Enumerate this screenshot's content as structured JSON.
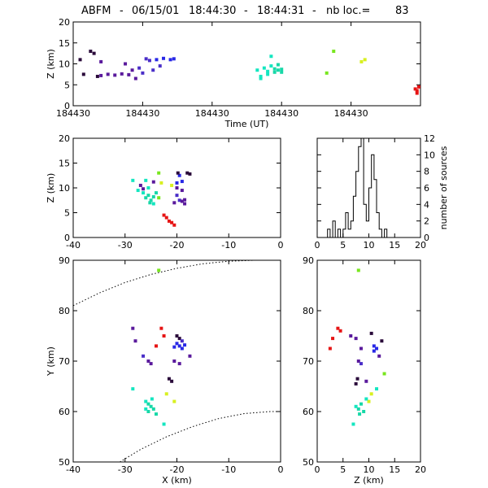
{
  "title": {
    "station": "ABFM",
    "separator": "-",
    "date": "06/15/01",
    "time_start": "18:44:30",
    "time_end": "18:44:31",
    "count_label": "nb loc.=",
    "count": "83"
  },
  "colors": {
    "black_purple": "#2a0a3a",
    "purple": "#5a1a9c",
    "violet": "#4a2ec8",
    "blue": "#2828e6",
    "cyan": "#14e6c0",
    "cyan2": "#18d8a8",
    "lime": "#78e61e",
    "yellow": "#d8f020",
    "red": "#e61414"
  },
  "chart_data": [
    {
      "type": "scatter",
      "panel": "time-height",
      "xlabel": "Time (UT)",
      "ylabel": "Z (km)",
      "ylim": [
        0,
        20
      ],
      "xlim": [
        0,
        1
      ],
      "yticks": [
        0,
        5,
        10,
        15,
        20
      ],
      "xtick_positions": [
        0,
        0.2,
        0.4,
        0.6,
        0.8
      ],
      "xtick_labels": [
        "184430",
        "184430",
        "184430",
        "184430",
        "184430"
      ],
      "points": [
        {
          "x": 0.02,
          "y": 11.0,
          "c": "black_purple"
        },
        {
          "x": 0.03,
          "y": 7.5,
          "c": "black_purple"
        },
        {
          "x": 0.05,
          "y": 13.0,
          "c": "black_purple"
        },
        {
          "x": 0.06,
          "y": 12.5,
          "c": "black_purple"
        },
        {
          "x": 0.07,
          "y": 7.0,
          "c": "black_purple"
        },
        {
          "x": 0.08,
          "y": 10.5,
          "c": "purple"
        },
        {
          "x": 0.08,
          "y": 7.2,
          "c": "purple"
        },
        {
          "x": 0.1,
          "y": 7.5,
          "c": "purple"
        },
        {
          "x": 0.12,
          "y": 7.3,
          "c": "purple"
        },
        {
          "x": 0.14,
          "y": 7.6,
          "c": "purple"
        },
        {
          "x": 0.15,
          "y": 10.0,
          "c": "purple"
        },
        {
          "x": 0.16,
          "y": 7.4,
          "c": "purple"
        },
        {
          "x": 0.17,
          "y": 8.5,
          "c": "purple"
        },
        {
          "x": 0.18,
          "y": 6.5,
          "c": "purple"
        },
        {
          "x": 0.19,
          "y": 9.0,
          "c": "violet"
        },
        {
          "x": 0.2,
          "y": 7.8,
          "c": "violet"
        },
        {
          "x": 0.21,
          "y": 11.2,
          "c": "violet"
        },
        {
          "x": 0.22,
          "y": 10.8,
          "c": "violet"
        },
        {
          "x": 0.24,
          "y": 11.0,
          "c": "blue"
        },
        {
          "x": 0.26,
          "y": 11.3,
          "c": "blue"
        },
        {
          "x": 0.28,
          "y": 11.0,
          "c": "blue"
        },
        {
          "x": 0.29,
          "y": 11.2,
          "c": "blue"
        },
        {
          "x": 0.23,
          "y": 8.5,
          "c": "violet"
        },
        {
          "x": 0.25,
          "y": 9.5,
          "c": "violet"
        },
        {
          "x": 0.53,
          "y": 8.5,
          "c": "cyan"
        },
        {
          "x": 0.54,
          "y": 7.0,
          "c": "cyan"
        },
        {
          "x": 0.55,
          "y": 9.0,
          "c": "cyan"
        },
        {
          "x": 0.56,
          "y": 7.5,
          "c": "cyan"
        },
        {
          "x": 0.56,
          "y": 8.2,
          "c": "cyan"
        },
        {
          "x": 0.57,
          "y": 11.8,
          "c": "cyan"
        },
        {
          "x": 0.57,
          "y": 9.5,
          "c": "cyan"
        },
        {
          "x": 0.58,
          "y": 8.8,
          "c": "cyan2"
        },
        {
          "x": 0.58,
          "y": 8.0,
          "c": "cyan2"
        },
        {
          "x": 0.59,
          "y": 9.8,
          "c": "cyan2"
        },
        {
          "x": 0.59,
          "y": 8.5,
          "c": "cyan2"
        },
        {
          "x": 0.6,
          "y": 8.7,
          "c": "cyan2"
        },
        {
          "x": 0.6,
          "y": 8.0,
          "c": "cyan2"
        },
        {
          "x": 0.54,
          "y": 6.5,
          "c": "cyan"
        },
        {
          "x": 0.73,
          "y": 7.8,
          "c": "lime"
        },
        {
          "x": 0.75,
          "y": 13.0,
          "c": "lime"
        },
        {
          "x": 0.83,
          "y": 10.5,
          "c": "yellow"
        },
        {
          "x": 0.84,
          "y": 11.0,
          "c": "yellow"
        },
        {
          "x": 0.995,
          "y": 4.5,
          "c": "red"
        },
        {
          "x": 0.99,
          "y": 3.0,
          "c": "red"
        },
        {
          "x": 0.985,
          "y": 4.0,
          "c": "red"
        },
        {
          "x": 0.99,
          "y": 3.6,
          "c": "red"
        }
      ]
    },
    {
      "type": "scatter",
      "panel": "x-z",
      "xlabel": "",
      "ylabel": "Z (km)",
      "xlim": [
        -40,
        0
      ],
      "ylim": [
        0,
        20
      ],
      "xticks": [
        -40,
        -30,
        -20,
        -10,
        0
      ],
      "yticks": [
        0,
        5,
        10,
        15,
        20
      ],
      "points": [
        {
          "x": -28.5,
          "y": 11.5,
          "c": "cyan"
        },
        {
          "x": -27.5,
          "y": 9.5,
          "c": "cyan"
        },
        {
          "x": -26.5,
          "y": 9.0,
          "c": "cyan"
        },
        {
          "x": -26,
          "y": 8.0,
          "c": "cyan2"
        },
        {
          "x": -25.5,
          "y": 8.5,
          "c": "cyan2"
        },
        {
          "x": -25,
          "y": 7.5,
          "c": "cyan2"
        },
        {
          "x": -24.5,
          "y": 8.2,
          "c": "cyan2"
        },
        {
          "x": -24,
          "y": 9.0,
          "c": "cyan2"
        },
        {
          "x": -25.5,
          "y": 10.0,
          "c": "cyan"
        },
        {
          "x": -26,
          "y": 11.5,
          "c": "cyan"
        },
        {
          "x": -24.5,
          "y": 6.8,
          "c": "cyan"
        },
        {
          "x": -25.2,
          "y": 7.0,
          "c": "cyan2"
        },
        {
          "x": -27,
          "y": 10.5,
          "c": "purple"
        },
        {
          "x": -26.5,
          "y": 9.8,
          "c": "purple"
        },
        {
          "x": -24.5,
          "y": 11.2,
          "c": "purple"
        },
        {
          "x": -23,
          "y": 11.0,
          "c": "yellow"
        },
        {
          "x": -21,
          "y": 10.5,
          "c": "yellow"
        },
        {
          "x": -23.5,
          "y": 13.0,
          "c": "lime"
        },
        {
          "x": -23.5,
          "y": 8.0,
          "c": "lime"
        },
        {
          "x": -20,
          "y": 11.0,
          "c": "blue"
        },
        {
          "x": -19.5,
          "y": 12.5,
          "c": "blue"
        },
        {
          "x": -19,
          "y": 11.3,
          "c": "blue"
        },
        {
          "x": -19.8,
          "y": 13.0,
          "c": "black_purple"
        },
        {
          "x": -18,
          "y": 13.0,
          "c": "black_purple"
        },
        {
          "x": -17.5,
          "y": 12.8,
          "c": "black_purple"
        },
        {
          "x": -20,
          "y": 8.5,
          "c": "violet"
        },
        {
          "x": -19.5,
          "y": 7.5,
          "c": "violet"
        },
        {
          "x": -20.5,
          "y": 7.0,
          "c": "purple"
        },
        {
          "x": -19,
          "y": 7.3,
          "c": "purple"
        },
        {
          "x": -18.5,
          "y": 7.6,
          "c": "purple"
        },
        {
          "x": -20,
          "y": 10.0,
          "c": "purple"
        },
        {
          "x": -19,
          "y": 9.5,
          "c": "purple"
        },
        {
          "x": -18.5,
          "y": 6.8,
          "c": "purple"
        },
        {
          "x": -22.5,
          "y": 4.5,
          "c": "red"
        },
        {
          "x": -22,
          "y": 4.0,
          "c": "red"
        },
        {
          "x": -21.5,
          "y": 3.3,
          "c": "red"
        },
        {
          "x": -21,
          "y": 3.0,
          "c": "red"
        },
        {
          "x": -20.5,
          "y": 2.5,
          "c": "red"
        }
      ]
    },
    {
      "type": "bar",
      "panel": "histogram",
      "xlabel": "",
      "ylabel": "number of sources",
      "xlim": [
        0,
        20
      ],
      "ylim": [
        0,
        12
      ],
      "xticks": [
        0,
        5,
        10,
        15,
        20
      ],
      "yticks": [
        0,
        2,
        4,
        6,
        8,
        10,
        12
      ],
      "bin_width": 0.5,
      "bin_starts": [
        1.0,
        1.5,
        2.0,
        2.5,
        3.0,
        3.5,
        4.0,
        4.5,
        5.0,
        5.5,
        6.0,
        6.5,
        7.0,
        7.5,
        8.0,
        8.5,
        9.0,
        9.5,
        10.0,
        10.5,
        11.0,
        11.5,
        12.0,
        12.5,
        13.0,
        13.5
      ],
      "values": [
        0,
        0,
        1,
        0,
        2,
        0,
        1,
        0,
        1,
        3,
        1,
        2,
        5,
        8,
        11,
        12,
        4,
        2,
        6,
        10,
        7,
        3,
        1,
        0,
        1,
        0
      ]
    },
    {
      "type": "scatter",
      "panel": "x-y",
      "xlabel": "X (km)",
      "ylabel": "Y (km)",
      "xlim": [
        -40,
        0
      ],
      "ylim": [
        50,
        90
      ],
      "xticks": [
        -40,
        -30,
        -20,
        -10,
        0
      ],
      "yticks": [
        50,
        60,
        70,
        80,
        90
      ],
      "points": [
        {
          "x": -23.5,
          "y": 88,
          "c": "lime"
        },
        {
          "x": -28.5,
          "y": 76.5,
          "c": "purple"
        },
        {
          "x": -28,
          "y": 74,
          "c": "purple"
        },
        {
          "x": -26.5,
          "y": 71,
          "c": "violet"
        },
        {
          "x": -25.5,
          "y": 70,
          "c": "purple"
        },
        {
          "x": -25,
          "y": 69.5,
          "c": "purple"
        },
        {
          "x": -23,
          "y": 76.5,
          "c": "red"
        },
        {
          "x": -22.5,
          "y": 75,
          "c": "red"
        },
        {
          "x": -24,
          "y": 73,
          "c": "red"
        },
        {
          "x": -20,
          "y": 75,
          "c": "black_purple"
        },
        {
          "x": -19.5,
          "y": 74.5,
          "c": "black_purple"
        },
        {
          "x": -19,
          "y": 74,
          "c": "violet"
        },
        {
          "x": -20,
          "y": 73.5,
          "c": "blue"
        },
        {
          "x": -19.5,
          "y": 73,
          "c": "blue"
        },
        {
          "x": -19,
          "y": 72.5,
          "c": "blue"
        },
        {
          "x": -20.5,
          "y": 72.8,
          "c": "blue"
        },
        {
          "x": -18.5,
          "y": 73.2,
          "c": "blue"
        },
        {
          "x": -17.5,
          "y": 71,
          "c": "purple"
        },
        {
          "x": -20.5,
          "y": 70,
          "c": "purple"
        },
        {
          "x": -19.5,
          "y": 69.5,
          "c": "purple"
        },
        {
          "x": -21,
          "y": 66,
          "c": "black_purple"
        },
        {
          "x": -21.5,
          "y": 66.5,
          "c": "black_purple"
        },
        {
          "x": -22,
          "y": 63.5,
          "c": "yellow"
        },
        {
          "x": -20.5,
          "y": 62,
          "c": "yellow"
        },
        {
          "x": -28.5,
          "y": 64.5,
          "c": "cyan"
        },
        {
          "x": -26,
          "y": 62,
          "c": "cyan"
        },
        {
          "x": -25.5,
          "y": 61.5,
          "c": "cyan2"
        },
        {
          "x": -25,
          "y": 61,
          "c": "cyan2"
        },
        {
          "x": -24.5,
          "y": 60.5,
          "c": "cyan2"
        },
        {
          "x": -25.5,
          "y": 60,
          "c": "cyan2"
        },
        {
          "x": -24,
          "y": 59.5,
          "c": "cyan2"
        },
        {
          "x": -26,
          "y": 60.5,
          "c": "cyan"
        },
        {
          "x": -24.8,
          "y": 62.5,
          "c": "cyan"
        },
        {
          "x": -22.5,
          "y": 57.5,
          "c": "cyan"
        }
      ],
      "curves": [
        {
          "name": "range-arc-outer",
          "points": [
            [
              -40,
              81
            ],
            [
              -35,
              83.5
            ],
            [
              -30,
              85.6
            ],
            [
              -25,
              87.2
            ],
            [
              -20,
              88.4
            ],
            [
              -15,
              89.3
            ],
            [
              -10,
              89.8
            ],
            [
              -5,
              90.0
            ]
          ]
        },
        {
          "name": "range-arc-inner",
          "points": [
            [
              -31,
              50
            ],
            [
              -27,
              52.5
            ],
            [
              -22,
              55
            ],
            [
              -17,
              57
            ],
            [
              -12,
              58.6
            ],
            [
              -7,
              59.6
            ],
            [
              -2,
              60.0
            ],
            [
              0,
              60.0
            ]
          ]
        }
      ]
    },
    {
      "type": "scatter",
      "panel": "z-y",
      "xlabel": "Z (km)",
      "ylabel": "",
      "xlim": [
        0,
        20
      ],
      "ylim": [
        50,
        90
      ],
      "xticks": [
        0,
        5,
        10,
        15,
        20
      ],
      "yticks": [
        50,
        60,
        70,
        80,
        90
      ],
      "points": [
        {
          "x": 8.0,
          "y": 88,
          "c": "lime"
        },
        {
          "x": 3.0,
          "y": 74.5,
          "c": "red"
        },
        {
          "x": 2.5,
          "y": 72.5,
          "c": "red"
        },
        {
          "x": 4.0,
          "y": 76.5,
          "c": "red"
        },
        {
          "x": 4.5,
          "y": 76,
          "c": "red"
        },
        {
          "x": 6.5,
          "y": 75,
          "c": "purple"
        },
        {
          "x": 7.5,
          "y": 74.5,
          "c": "purple"
        },
        {
          "x": 8.5,
          "y": 72.5,
          "c": "purple"
        },
        {
          "x": 8.0,
          "y": 70,
          "c": "purple"
        },
        {
          "x": 8.5,
          "y": 69.5,
          "c": "violet"
        },
        {
          "x": 10.5,
          "y": 75.5,
          "c": "black_purple"
        },
        {
          "x": 12.5,
          "y": 74,
          "c": "black_purple"
        },
        {
          "x": 11.0,
          "y": 73,
          "c": "blue"
        },
        {
          "x": 11.5,
          "y": 72.5,
          "c": "blue"
        },
        {
          "x": 11.0,
          "y": 72,
          "c": "blue"
        },
        {
          "x": 12.0,
          "y": 71,
          "c": "purple"
        },
        {
          "x": 9.5,
          "y": 66,
          "c": "purple"
        },
        {
          "x": 7.5,
          "y": 65.5,
          "c": "black_purple"
        },
        {
          "x": 7.8,
          "y": 66.5,
          "c": "black_purple"
        },
        {
          "x": 13.0,
          "y": 67.5,
          "c": "lime"
        },
        {
          "x": 10.5,
          "y": 63.5,
          "c": "yellow"
        },
        {
          "x": 10.0,
          "y": 62,
          "c": "yellow"
        },
        {
          "x": 11.5,
          "y": 64.5,
          "c": "cyan"
        },
        {
          "x": 7.5,
          "y": 61,
          "c": "cyan"
        },
        {
          "x": 8.0,
          "y": 60.5,
          "c": "cyan2"
        },
        {
          "x": 8.5,
          "y": 61.5,
          "c": "cyan2"
        },
        {
          "x": 9.0,
          "y": 60,
          "c": "cyan2"
        },
        {
          "x": 8.2,
          "y": 59.5,
          "c": "cyan2"
        },
        {
          "x": 9.5,
          "y": 62.5,
          "c": "cyan"
        },
        {
          "x": 7.0,
          "y": 57.5,
          "c": "cyan"
        }
      ]
    }
  ]
}
